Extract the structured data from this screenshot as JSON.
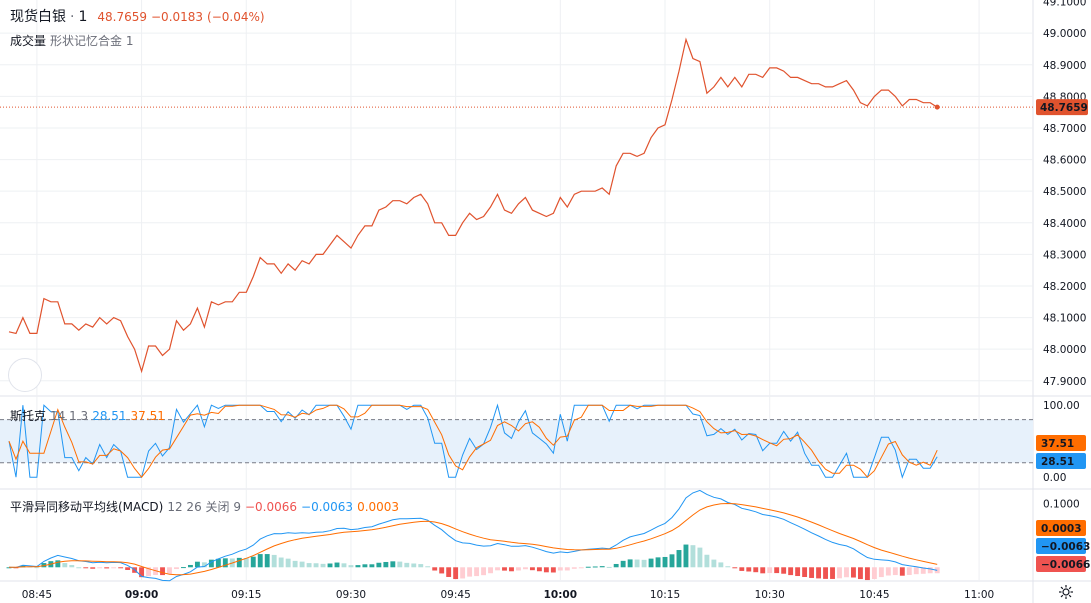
{
  "colors": {
    "price_line": "#e0532e",
    "stoch_k": "#2196f3",
    "stoch_d": "#ff6d00",
    "macd_line": "#2196f3",
    "signal_line": "#ff6d00",
    "hist_green_strong": "#26a69a",
    "hist_green_weak": "#b2dfdb",
    "hist_red_strong": "#ef5350",
    "hist_red_weak": "#ffcdd2",
    "grid": "#eef0f3",
    "band_fill": "#e7f1fb"
  },
  "legend": {
    "symbol": "现货白银",
    "interval": "1",
    "last": "48.7659",
    "change": "−0.0183",
    "change_pct": "(−0.04%)",
    "volume_label": "成交量",
    "volume_sub": "形状记忆合金 1",
    "stoch_label": "斯托克",
    "stoch_params": "14 1 3",
    "stoch_k": "28.51",
    "stoch_d": "37.51",
    "macd_label": "平滑异同移动平均线(MACD)",
    "macd_params": "12 26 关闭 9",
    "macd_hist": "−0.0066",
    "macd_line": "−0.0063",
    "macd_signal": "0.0003"
  },
  "chart_data": [
    {
      "type": "line",
      "name": "price",
      "x_axis": {
        "ticks": [
          "08:45",
          "09:00",
          "09:15",
          "09:30",
          "09:45",
          "10:00",
          "10:15",
          "10:30",
          "10:45",
          "11:00"
        ],
        "tick_minutes": [
          525,
          540,
          555,
          570,
          585,
          600,
          615,
          630,
          645,
          660
        ]
      },
      "y_axis": {
        "ticks": [
          "49.1000",
          "49.0000",
          "48.9000",
          "48.8000",
          "48.7000",
          "48.6000",
          "48.5000",
          "48.4000",
          "48.3000",
          "48.2000",
          "48.1000",
          "48.0000",
          "47.9000"
        ],
        "ylim": [
          47.855,
          49.105
        ]
      },
      "last_value_label": "48.7659",
      "last_value": 48.7659,
      "x": [
        521,
        522,
        523,
        524,
        525,
        526,
        527,
        528,
        529,
        530,
        531,
        532,
        533,
        534,
        535,
        536,
        537,
        538,
        539,
        540,
        541,
        542,
        543,
        544,
        545,
        546,
        547,
        548,
        549,
        550,
        551,
        552,
        553,
        554,
        555,
        556,
        557,
        558,
        559,
        560,
        561,
        562,
        563,
        564,
        565,
        566,
        567,
        568,
        569,
        570,
        571,
        572,
        573,
        574,
        575,
        576,
        577,
        578,
        579,
        580,
        581,
        582,
        583,
        584,
        585,
        586,
        587,
        588,
        589,
        590,
        591,
        592,
        593,
        594,
        595,
        596,
        597,
        598,
        599,
        600,
        601,
        602,
        603,
        604,
        605,
        606,
        607,
        608,
        609,
        610,
        611,
        612,
        613,
        614,
        615,
        616,
        617,
        618,
        619,
        620,
        621,
        622,
        623,
        624,
        625,
        626,
        627,
        628,
        629,
        630,
        631,
        632,
        633,
        634,
        635,
        636,
        637,
        638,
        639,
        640,
        641,
        642,
        643,
        644,
        645,
        646,
        647,
        648,
        649,
        650,
        651,
        652,
        653,
        654
      ],
      "values": [
        48.055,
        48.05,
        48.1,
        48.05,
        48.05,
        48.16,
        48.15,
        48.15,
        48.08,
        48.08,
        48.06,
        48.08,
        48.07,
        48.1,
        48.08,
        48.1,
        48.09,
        48.04,
        48.0,
        47.93,
        48.01,
        48.01,
        47.98,
        48.0,
        48.09,
        48.06,
        48.08,
        48.13,
        48.07,
        48.15,
        48.14,
        48.15,
        48.15,
        48.18,
        48.18,
        48.23,
        48.29,
        48.27,
        48.27,
        48.24,
        48.27,
        48.25,
        48.28,
        48.27,
        48.3,
        48.3,
        48.33,
        48.36,
        48.34,
        48.32,
        48.36,
        48.39,
        48.39,
        48.44,
        48.45,
        48.47,
        48.47,
        48.46,
        48.48,
        48.49,
        48.46,
        48.4,
        48.4,
        48.36,
        48.36,
        48.4,
        48.43,
        48.41,
        48.42,
        48.45,
        48.49,
        48.44,
        48.43,
        48.46,
        48.48,
        48.44,
        48.43,
        48.42,
        48.43,
        48.48,
        48.45,
        48.49,
        48.5,
        48.5,
        48.5,
        48.51,
        48.49,
        48.58,
        48.62,
        48.62,
        48.61,
        48.62,
        48.67,
        48.7,
        48.71,
        48.79,
        48.88,
        48.98,
        48.92,
        48.91,
        48.81,
        48.83,
        48.86,
        48.83,
        48.86,
        48.83,
        48.87,
        48.87,
        48.86,
        48.89,
        48.89,
        48.88,
        48.86,
        48.86,
        48.85,
        48.84,
        48.84,
        48.83,
        48.83,
        48.84,
        48.85,
        48.82,
        48.78,
        48.77,
        48.8,
        48.82,
        48.82,
        48.8,
        48.77,
        48.79,
        48.79,
        48.78,
        48.78,
        48.7659
      ]
    },
    {
      "type": "line",
      "name": "stochastic",
      "y_axis": {
        "ticks": [
          "100.00",
          "0.00"
        ],
        "ylim": [
          -15,
          110
        ],
        "bands": [
          20,
          80
        ]
      },
      "series": [
        {
          "name": "%K",
          "last_label": "28.51"
        },
        {
          "name": "%D",
          "last_label": "37.51"
        }
      ]
    },
    {
      "type": "line",
      "name": "macd",
      "y_axis": {
        "ticks": [
          "0.1000"
        ],
        "ylim": [
          -0.02,
          0.12
        ]
      },
      "series": [
        {
          "name": "MACD",
          "last_label": "−0.0063"
        },
        {
          "name": "Signal",
          "last_label": "0.0003"
        },
        {
          "name": "Histogram",
          "last_label": "−0.0066"
        }
      ]
    }
  ]
}
